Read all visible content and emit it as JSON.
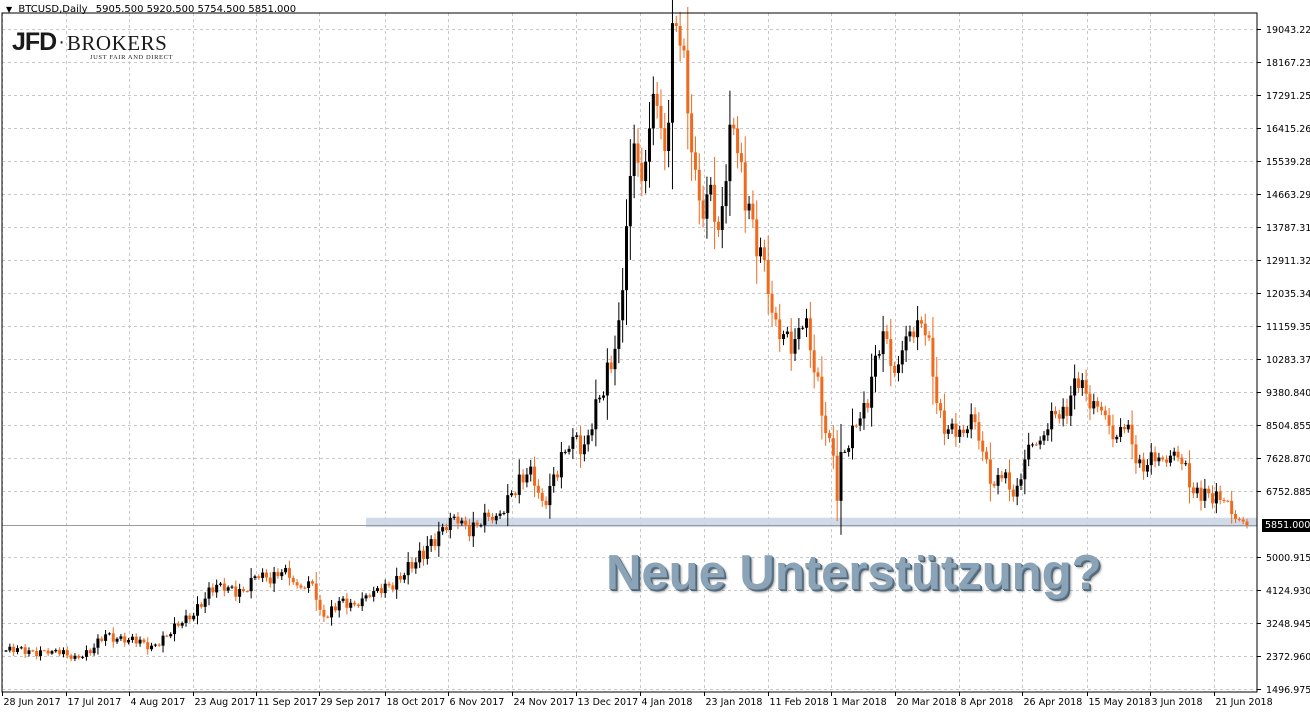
{
  "header": {
    "symbol": "BTCUSD,Daily",
    "ohlc": "5905.500 5920.500 5754.500 5851.000"
  },
  "logo": {
    "left": "JFD",
    "right": "BROKERS",
    "tagline": "JUST FAIR AND DIRECT"
  },
  "annotation": "Neue Unterstützung?",
  "colors": {
    "bull": "#000000",
    "bear": "#f06a1e",
    "grid": "#c8c8c8",
    "support_band": "#c8d4e4",
    "price_line": "#9a9a9a",
    "annotation": "#8aa3b6"
  },
  "chart_data": {
    "type": "candlestick",
    "title": "",
    "xlabel": "",
    "ylabel": "",
    "current_price": "5851.000",
    "ylim": [
      1496.975,
      19395
    ],
    "y_ticks": [
      "19043.220",
      "18167.235",
      "17291.250",
      "16415.265",
      "15539.280",
      "14663.295",
      "13787.310",
      "12911.325",
      "12035.340",
      "11159.355",
      "10283.370",
      "9380.840",
      "8504.855",
      "7628.870",
      "6752.885",
      "5000.915",
      "4124.930",
      "3248.945",
      "2372.960",
      "1496.975"
    ],
    "x_ticks": [
      "28 Jun 2017",
      "17 Jul 2017",
      "4 Aug 2017",
      "23 Aug 2017",
      "11 Sep 2017",
      "29 Sep 2017",
      "18 Oct 2017",
      "6 Nov 2017",
      "24 Nov 2017",
      "13 Dec 2017",
      "4 Jan 2018",
      "23 Jan 2018",
      "11 Feb 2018",
      "1 Mar 2018",
      "20 Mar 2018",
      "8 Apr 2018",
      "26 Apr 2018",
      "15 May 2018",
      "3 Jun 2018",
      "21 Jun 2018"
    ],
    "support_level": [
      5800,
      6050
    ],
    "close_anchors": [
      [
        0,
        2520
      ],
      [
        12,
        2500
      ],
      [
        18,
        2380
      ],
      [
        22,
        2450
      ],
      [
        26,
        2950
      ],
      [
        32,
        2800
      ],
      [
        38,
        2650
      ],
      [
        42,
        2900
      ],
      [
        46,
        3250
      ],
      [
        52,
        3900
      ],
      [
        56,
        4300
      ],
      [
        62,
        4100
      ],
      [
        66,
        4450
      ],
      [
        72,
        4600
      ],
      [
        76,
        4250
      ],
      [
        80,
        4300
      ],
      [
        82,
        3600
      ],
      [
        84,
        3400
      ],
      [
        88,
        3900
      ],
      [
        92,
        3700
      ],
      [
        96,
        4100
      ],
      [
        100,
        4250
      ],
      [
        106,
        4700
      ],
      [
        110,
        5300
      ],
      [
        114,
        5800
      ],
      [
        118,
        5900
      ],
      [
        124,
        5850
      ],
      [
        128,
        6100
      ],
      [
        132,
        6700
      ],
      [
        136,
        7200
      ],
      [
        138,
        6900
      ],
      [
        140,
        6500
      ],
      [
        143,
        7200
      ],
      [
        146,
        7800
      ],
      [
        148,
        8200
      ],
      [
        151,
        8000
      ],
      [
        154,
        9200
      ],
      [
        156,
        9300
      ],
      [
        158,
        10000
      ],
      [
        160,
        11300
      ],
      [
        162,
        13800
      ],
      [
        164,
        16000
      ],
      [
        166,
        15000
      ],
      [
        168,
        16400
      ],
      [
        170,
        17000
      ],
      [
        172,
        15800
      ],
      [
        174,
        19200
      ],
      [
        176,
        18600
      ],
      [
        178,
        16800
      ],
      [
        180,
        15300
      ],
      [
        182,
        14000
      ],
      [
        184,
        14900
      ],
      [
        186,
        13700
      ],
      [
        188,
        15000
      ],
      [
        190,
        16400
      ],
      [
        192,
        15500
      ],
      [
        194,
        14400
      ],
      [
        196,
        13000
      ],
      [
        198,
        12900
      ],
      [
        200,
        11500
      ],
      [
        202,
        10800
      ],
      [
        204,
        11000
      ],
      [
        206,
        10800
      ],
      [
        208,
        11100
      ],
      [
        210,
        10500
      ],
      [
        212,
        9800
      ],
      [
        214,
        8300
      ],
      [
        216,
        7700
      ],
      [
        217,
        6500
      ],
      [
        218,
        7800
      ],
      [
        220,
        7900
      ],
      [
        222,
        8500
      ],
      [
        224,
        9100
      ],
      [
        226,
        9800
      ],
      [
        228,
        10400
      ],
      [
        230,
        10800
      ],
      [
        232,
        9900
      ],
      [
        234,
        10500
      ],
      [
        236,
        11000
      ],
      [
        238,
        11300
      ],
      [
        240,
        10900
      ],
      [
        242,
        9800
      ],
      [
        244,
        8900
      ],
      [
        246,
        8400
      ],
      [
        248,
        8200
      ],
      [
        250,
        8300
      ],
      [
        252,
        8800
      ],
      [
        254,
        8100
      ],
      [
        256,
        7600
      ],
      [
        258,
        6900
      ],
      [
        260,
        7100
      ],
      [
        262,
        6800
      ],
      [
        264,
        6900
      ],
      [
        266,
        7600
      ],
      [
        268,
        8000
      ],
      [
        270,
        8100
      ],
      [
        272,
        8400
      ],
      [
        274,
        8800
      ],
      [
        276,
        9000
      ],
      [
        278,
        9300
      ],
      [
        280,
        9500
      ],
      [
        282,
        9350
      ],
      [
        284,
        9150
      ],
      [
        286,
        8900
      ],
      [
        288,
        8500
      ],
      [
        290,
        8200
      ],
      [
        292,
        8400
      ],
      [
        294,
        8000
      ],
      [
        296,
        7600
      ],
      [
        298,
        7450
      ],
      [
        300,
        7550
      ],
      [
        302,
        7600
      ],
      [
        304,
        7700
      ],
      [
        306,
        7650
      ],
      [
        308,
        7500
      ],
      [
        310,
        6700
      ],
      [
        312,
        6500
      ],
      [
        314,
        6700
      ],
      [
        316,
        6750
      ],
      [
        318,
        6500
      ],
      [
        320,
        6150
      ],
      [
        322,
        6000
      ],
      [
        324,
        5851
      ]
    ]
  }
}
